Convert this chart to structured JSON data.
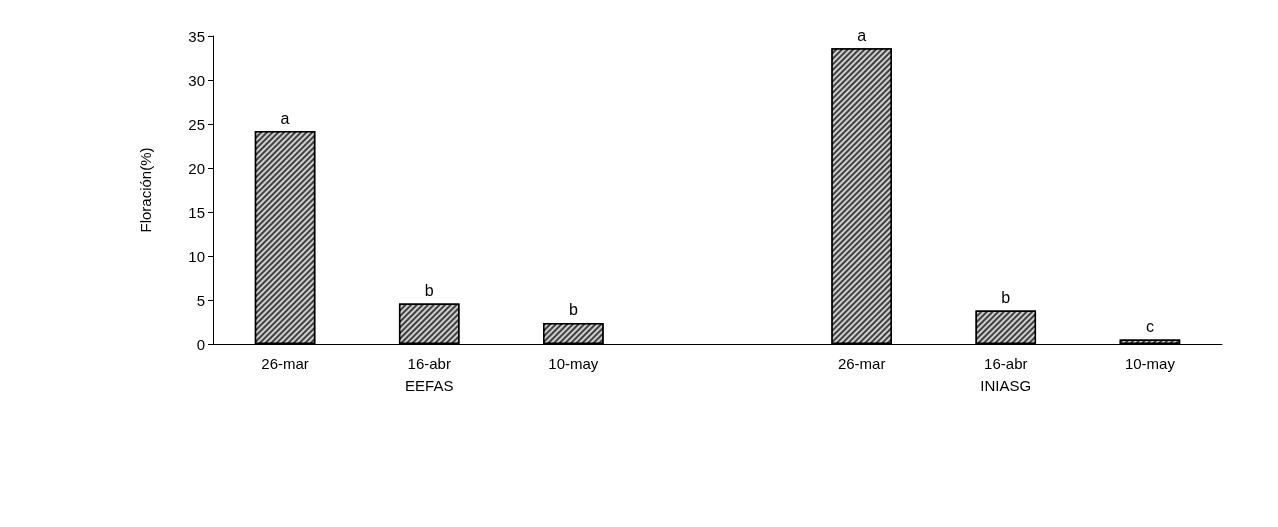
{
  "chart_data": {
    "type": "bar",
    "ylabel": "Floración(%)",
    "categories": [
      "26-mar",
      "16-abr\nEEFAS",
      "10-may",
      null,
      "26-mar",
      "16-abr\nINIASG",
      "10-may"
    ],
    "values": [
      24.2,
      4.6,
      2.4,
      null,
      33.6,
      3.8,
      0.5
    ],
    "value_labels": [
      "a",
      "b",
      "b",
      null,
      "a",
      "b",
      "c"
    ],
    "color": "#404040",
    "ylim": [
      0,
      35
    ],
    "yticks": [
      0,
      5,
      10,
      15,
      20,
      25,
      30,
      35
    ],
    "grid": false
  }
}
